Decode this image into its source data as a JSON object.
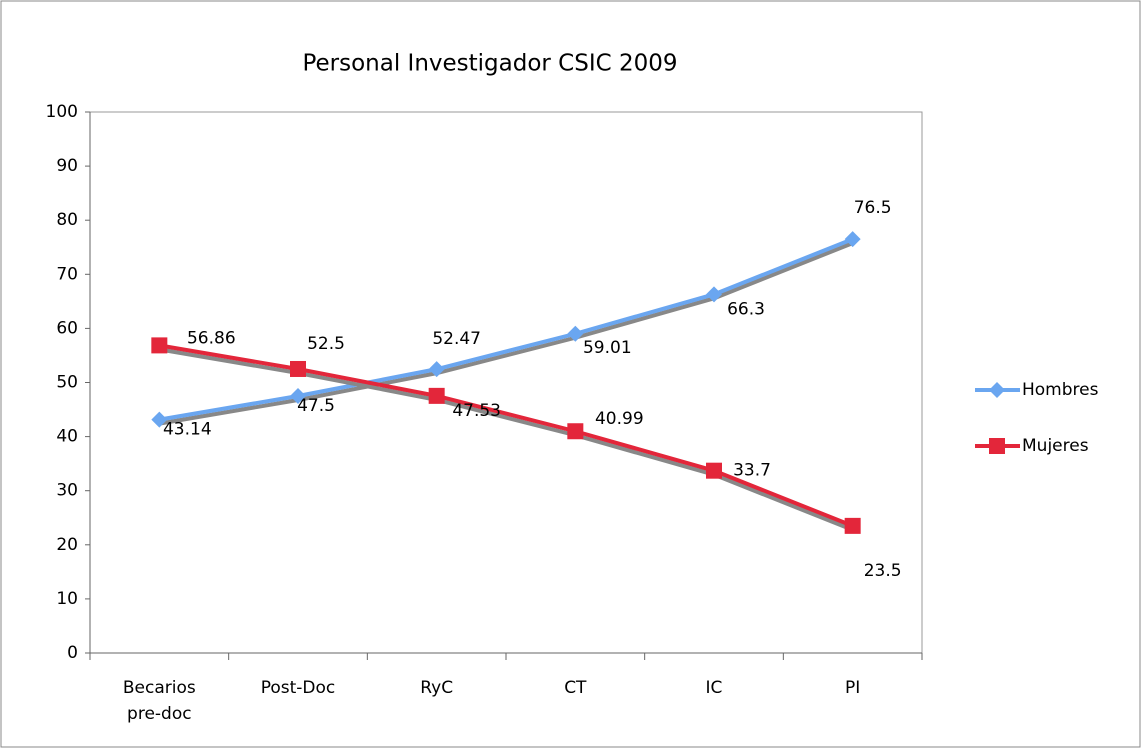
{
  "chart_data": {
    "type": "line",
    "title": "Personal Investigador CSIC 2009",
    "categories": [
      "Becarios pre-doc",
      "Post-Doc",
      "RyC",
      "CT",
      "IC",
      "PI"
    ],
    "series": [
      {
        "name": "Hombres",
        "color": "#6aa6f0",
        "marker": "diamond",
        "values": [
          43.14,
          47.5,
          52.47,
          59.01,
          66.3,
          76.5
        ]
      },
      {
        "name": "Mujeres",
        "color": "#e3263a",
        "marker": "square",
        "values": [
          56.86,
          52.5,
          47.53,
          40.99,
          33.7,
          23.5
        ]
      }
    ],
    "ylim": [
      0,
      100
    ],
    "yticks": [
      0,
      10,
      20,
      30,
      40,
      50,
      60,
      70,
      80,
      90,
      100
    ],
    "grid": false,
    "legend": "right"
  }
}
